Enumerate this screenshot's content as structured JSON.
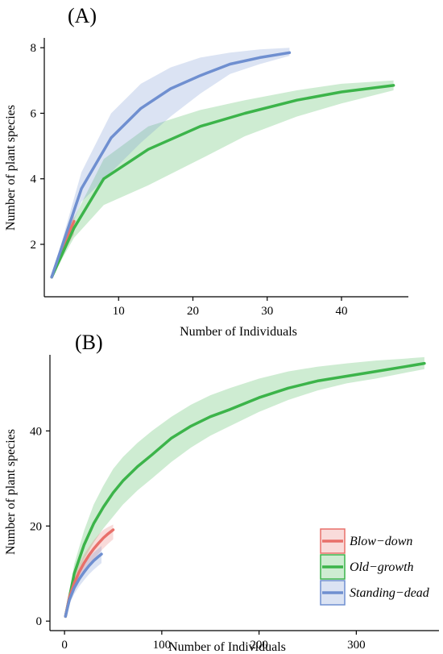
{
  "colors": {
    "blow_down": "#e8706a",
    "old_growth": "#3cb44a",
    "standing_dead": "#6f8fd0"
  },
  "chart_data": [
    {
      "id": "A",
      "type": "line",
      "panel_label": "(A)",
      "xlabel": "Number of Individuals",
      "ylabel": "Number of plant species",
      "xlim": [
        0,
        49
      ],
      "ylim": [
        0.4,
        8.3
      ],
      "xticks": [
        10,
        20,
        30,
        40
      ],
      "yticks": [
        2,
        4,
        6,
        8
      ],
      "grid": false,
      "series": [
        {
          "key": "blow_down",
          "color": "#e8706a",
          "x": [
            1,
            2,
            3,
            4
          ],
          "y": [
            1.0,
            1.6,
            2.2,
            2.7
          ],
          "lower": [
            1.0,
            1.4,
            1.9,
            2.3
          ],
          "upper": [
            1.0,
            1.8,
            2.5,
            2.9
          ]
        },
        {
          "key": "old_growth",
          "color": "#3cb44a",
          "x": [
            1,
            4,
            8,
            14,
            21,
            27,
            34,
            40,
            47
          ],
          "y": [
            1.0,
            2.5,
            4.0,
            4.9,
            5.6,
            6.0,
            6.4,
            6.65,
            6.85
          ],
          "lower": [
            1.0,
            2.2,
            3.2,
            3.8,
            4.6,
            5.3,
            5.9,
            6.3,
            6.7
          ],
          "upper": [
            1.0,
            2.8,
            4.6,
            5.6,
            6.1,
            6.4,
            6.7,
            6.9,
            7.0
          ]
        },
        {
          "key": "standing_dead",
          "color": "#6f8fd0",
          "x": [
            1,
            5,
            9,
            13,
            17,
            21,
            25,
            29,
            33
          ],
          "y": [
            1.0,
            3.7,
            5.25,
            6.15,
            6.75,
            7.15,
            7.5,
            7.7,
            7.85
          ],
          "lower": [
            1.0,
            3.3,
            4.2,
            5.1,
            5.9,
            6.6,
            7.2,
            7.5,
            7.75
          ],
          "upper": [
            1.0,
            4.2,
            6.0,
            6.9,
            7.4,
            7.7,
            7.85,
            7.95,
            8.0
          ]
        }
      ]
    },
    {
      "id": "B",
      "type": "line",
      "panel_label": "(B)",
      "xlabel": "Number of Individuals",
      "ylabel": "Number of plant species",
      "xlim": [
        -15,
        385
      ],
      "ylim": [
        -2,
        56
      ],
      "xticks": [
        0,
        100,
        200,
        300
      ],
      "yticks": [
        0,
        20,
        40
      ],
      "grid": false,
      "legend_position": "bottom-right",
      "legend": [
        {
          "key": "blow_down",
          "label": "Blow−down",
          "color": "#e8706a"
        },
        {
          "key": "old_growth",
          "label": "Old−growth",
          "color": "#3cb44a"
        },
        {
          "key": "standing_dead",
          "label": "Standing−dead",
          "color": "#6f8fd0"
        }
      ],
      "series": [
        {
          "key": "old_growth",
          "color": "#3cb44a",
          "x": [
            1,
            10,
            20,
            30,
            40,
            50,
            60,
            75,
            90,
            110,
            130,
            150,
            170,
            200,
            230,
            260,
            290,
            320,
            350,
            370
          ],
          "y": [
            1,
            10,
            16,
            20.5,
            24,
            27,
            29.5,
            32.5,
            35,
            38.5,
            41,
            43,
            44.5,
            47,
            49,
            50.5,
            51.5,
            52.5,
            53.5,
            54.2
          ],
          "lower": [
            1,
            8,
            13,
            16.5,
            19.5,
            22,
            24.5,
            27.5,
            30,
            33.5,
            36.5,
            39,
            41,
            44,
            46.5,
            48.5,
            50,
            51,
            52.2,
            53
          ],
          "upper": [
            1,
            12,
            19,
            24.5,
            28.5,
            32,
            34.5,
            37.5,
            40,
            43,
            45.5,
            47.5,
            49,
            51,
            52.5,
            53.5,
            54.2,
            54.8,
            55.2,
            55.5
          ]
        },
        {
          "key": "blow_down",
          "color": "#e8706a",
          "x": [
            1,
            5,
            10,
            15,
            20,
            25,
            30,
            35,
            40,
            45,
            50
          ],
          "y": [
            1,
            5,
            8,
            10.3,
            12.2,
            13.8,
            15.2,
            16.4,
            17.5,
            18.4,
            19.2
          ],
          "lower": [
            1,
            4,
            6.5,
            8.5,
            10.2,
            11.7,
            13,
            14.2,
            15.3,
            16.3,
            17.2
          ],
          "upper": [
            1,
            6,
            9.5,
            12,
            14,
            15.6,
            17,
            18.2,
            19.2,
            19.8,
            20.3
          ]
        },
        {
          "key": "standing_dead",
          "color": "#6f8fd0",
          "x": [
            1,
            5,
            10,
            15,
            20,
            25,
            30,
            35,
            38
          ],
          "y": [
            1,
            4.5,
            7,
            8.8,
            10.3,
            11.6,
            12.7,
            13.6,
            14.1
          ],
          "lower": [
            1,
            3.6,
            5.7,
            7.3,
            8.6,
            9.8,
            10.8,
            11.7,
            12.2
          ],
          "upper": [
            1,
            5.4,
            8.3,
            10.3,
            12,
            13.3,
            14.4,
            15.3,
            15.8
          ]
        }
      ]
    }
  ]
}
